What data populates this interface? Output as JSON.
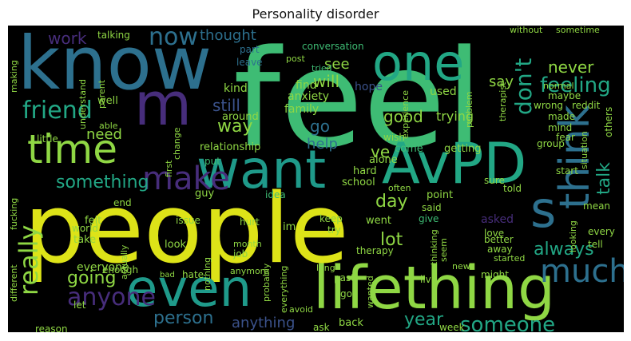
{
  "title": "Personality disorder",
  "palette": {
    "yellow": "#dde318",
    "lime": "#8fd744",
    "green": "#3ebc74",
    "teal": "#22a785",
    "cyan": "#1f9a8a",
    "blue": "#2d708e",
    "navy": "#3b528b",
    "purple": "#472d7b",
    "dark": "#440154"
  },
  "words": [
    {
      "t": "people",
      "c": "yellow"
    },
    {
      "t": "feel",
      "c": "green"
    },
    {
      "t": "know",
      "c": "blue"
    },
    {
      "t": "lifething",
      "c": "lime"
    },
    {
      "t": "even",
      "c": "cyan"
    },
    {
      "t": "want",
      "c": "cyan"
    },
    {
      "t": "AvPD",
      "c": "teal"
    },
    {
      "t": "one",
      "c": "teal"
    },
    {
      "t": "m",
      "c": "purple"
    },
    {
      "t": "time",
      "c": "lime"
    },
    {
      "t": "think",
      "c": "blue"
    },
    {
      "t": "s",
      "c": "blue"
    },
    {
      "t": "make",
      "c": "purple"
    },
    {
      "t": "much",
      "c": "blue"
    },
    {
      "t": "really",
      "c": "lime"
    },
    {
      "t": "now",
      "c": "blue"
    },
    {
      "t": "friend",
      "c": "teal"
    },
    {
      "t": "anyone",
      "c": "purple"
    },
    {
      "t": "someone",
      "c": "teal"
    },
    {
      "t": "don't",
      "c": "teal"
    },
    {
      "t": "feeling",
      "c": "teal"
    },
    {
      "t": "something",
      "c": "teal"
    },
    {
      "t": "going",
      "c": "lime"
    },
    {
      "t": "person",
      "c": "blue"
    },
    {
      "t": "way",
      "c": "lime"
    },
    {
      "t": "year",
      "c": "teal"
    },
    {
      "t": "always",
      "c": "teal"
    },
    {
      "t": "day",
      "c": "lime"
    },
    {
      "t": "lot",
      "c": "lime"
    },
    {
      "t": "talk",
      "c": "teal"
    },
    {
      "t": "work",
      "c": "purple"
    },
    {
      "t": "thought",
      "c": "blue"
    },
    {
      "t": "never",
      "c": "lime"
    },
    {
      "t": "will",
      "c": "lime"
    },
    {
      "t": "see",
      "c": "lime"
    },
    {
      "t": "say",
      "c": "lime"
    },
    {
      "t": "good",
      "c": "lime"
    },
    {
      "t": "go",
      "c": "blue"
    },
    {
      "t": "ve",
      "c": "lime"
    },
    {
      "t": "help",
      "c": "blue"
    },
    {
      "t": "still",
      "c": "navy"
    },
    {
      "t": "need",
      "c": "lime"
    },
    {
      "t": "anything",
      "c": "navy"
    },
    {
      "t": "everyone",
      "c": "lime"
    },
    {
      "t": "talking",
      "c": "lime"
    },
    {
      "t": "conversation",
      "c": "green"
    },
    {
      "t": "part",
      "c": "blue"
    },
    {
      "t": "leave",
      "c": "blue"
    },
    {
      "t": "tried",
      "c": "green"
    },
    {
      "t": "post",
      "c": "lime"
    },
    {
      "t": "kind",
      "c": "lime"
    },
    {
      "t": "find",
      "c": "lime"
    },
    {
      "t": "hope",
      "c": "navy"
    },
    {
      "t": "used",
      "c": "lime"
    },
    {
      "t": "anxiety",
      "c": "lime"
    },
    {
      "t": "around",
      "c": "lime"
    },
    {
      "t": "family",
      "c": "lime"
    },
    {
      "t": "trying",
      "c": "lime"
    },
    {
      "t": "relationship",
      "c": "lime"
    },
    {
      "t": "come",
      "c": "green"
    },
    {
      "t": "getting",
      "c": "lime"
    },
    {
      "t": "put",
      "c": "green"
    },
    {
      "t": "alone",
      "c": "lime"
    },
    {
      "t": "hard",
      "c": "lime"
    },
    {
      "t": "school",
      "c": "lime"
    },
    {
      "t": "often",
      "c": "lime"
    },
    {
      "t": "point",
      "c": "lime"
    },
    {
      "t": "told",
      "c": "lime"
    },
    {
      "t": "guy",
      "c": "lime"
    },
    {
      "t": "idea",
      "c": "green"
    },
    {
      "t": "said",
      "c": "lime"
    },
    {
      "t": "went",
      "c": "lime"
    },
    {
      "t": "give",
      "c": "green"
    },
    {
      "t": "felt",
      "c": "lime"
    },
    {
      "t": "issue",
      "c": "lime"
    },
    {
      "t": "hurt",
      "c": "lime"
    },
    {
      "t": "im",
      "c": "lime"
    },
    {
      "t": "keep",
      "c": "lime"
    },
    {
      "t": "try",
      "c": "lime"
    },
    {
      "t": "asked",
      "c": "purple"
    },
    {
      "t": "love",
      "c": "lime"
    },
    {
      "t": "look",
      "c": "lime"
    },
    {
      "t": "job",
      "c": "lime"
    },
    {
      "t": "month",
      "c": "lime"
    },
    {
      "t": "therapy",
      "c": "lime"
    },
    {
      "t": "better",
      "c": "lime"
    },
    {
      "t": "away",
      "c": "lime"
    },
    {
      "t": "started",
      "c": "lime"
    },
    {
      "t": "take",
      "c": "lime"
    },
    {
      "t": "world",
      "c": "lime"
    },
    {
      "t": "enough",
      "c": "lime"
    },
    {
      "t": "hate",
      "c": "lime"
    },
    {
      "t": "anymore",
      "c": "lime"
    },
    {
      "t": "bad",
      "c": "lime"
    },
    {
      "t": "might",
      "c": "lime"
    },
    {
      "t": "new",
      "c": "lime"
    },
    {
      "t": "live",
      "c": "lime"
    },
    {
      "t": "past",
      "c": "lime"
    },
    {
      "t": "got",
      "c": "lime"
    },
    {
      "t": "avoid",
      "c": "lime"
    },
    {
      "t": "back",
      "c": "lime"
    },
    {
      "t": "ask",
      "c": "lime"
    },
    {
      "t": "week",
      "c": "lime"
    },
    {
      "t": "let",
      "c": "lime"
    },
    {
      "t": "reason",
      "c": "lime"
    },
    {
      "t": "little",
      "c": "lime"
    },
    {
      "t": "able",
      "c": "lime"
    },
    {
      "t": "well",
      "c": "lime"
    },
    {
      "t": "normal",
      "c": "lime"
    },
    {
      "t": "maybe",
      "c": "lime"
    },
    {
      "t": "wrong",
      "c": "lime"
    },
    {
      "t": "reddit",
      "c": "lime"
    },
    {
      "t": "others",
      "c": "lime"
    },
    {
      "t": "made",
      "c": "lime"
    },
    {
      "t": "mind",
      "c": "lime"
    },
    {
      "t": "fear",
      "c": "lime"
    },
    {
      "t": "group",
      "c": "lime"
    },
    {
      "t": "start",
      "c": "lime"
    },
    {
      "t": "sure",
      "c": "lime"
    },
    {
      "t": "mean",
      "c": "lime"
    },
    {
      "t": "every",
      "c": "lime"
    },
    {
      "t": "tell",
      "c": "lime"
    },
    {
      "t": "wish",
      "c": "lime"
    },
    {
      "t": "end",
      "c": "lime"
    },
    {
      "t": "without",
      "c": "lime"
    },
    {
      "t": "sometime",
      "c": "lime"
    },
    {
      "t": "making",
      "c": "lime"
    },
    {
      "t": "understand",
      "c": "lime"
    },
    {
      "t": "parent",
      "c": "lime"
    },
    {
      "t": "experience",
      "c": "lime"
    },
    {
      "t": "problem",
      "c": "lime"
    },
    {
      "t": "therapist",
      "c": "lime"
    },
    {
      "t": "different",
      "c": "lime"
    },
    {
      "t": "fucking",
      "c": "lime"
    },
    {
      "t": "first",
      "c": "lime"
    },
    {
      "t": "change",
      "c": "lime"
    },
    {
      "t": "actually",
      "c": "lime"
    },
    {
      "t": "nothing",
      "c": "lime"
    },
    {
      "t": "probably",
      "c": "lime"
    },
    {
      "t": "everything",
      "c": "lime"
    },
    {
      "t": "wanted",
      "c": "lime"
    },
    {
      "t": "thinking",
      "c": "lime"
    },
    {
      "t": "seem",
      "c": "lime"
    },
    {
      "t": "long",
      "c": "lime"
    },
    {
      "t": "looking",
      "c": "lime"
    },
    {
      "t": "situation",
      "c": "lime"
    }
  ]
}
